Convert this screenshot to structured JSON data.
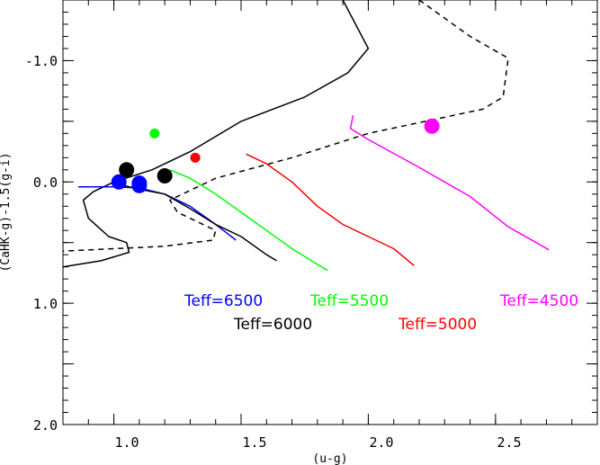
{
  "chart_data": {
    "type": "line",
    "xlabel": "(u-g)",
    "ylabel": "(CaHK-g)-1.5(g-i)",
    "xlim": [
      0.8,
      2.9
    ],
    "ylim": [
      2.0,
      -1.5
    ],
    "y_inverted": true,
    "x_ticks": [
      {
        "value": 1.0,
        "label": "1.0"
      },
      {
        "value": 1.5,
        "label": "1.5"
      },
      {
        "value": 2.0,
        "label": "2.0"
      },
      {
        "value": 2.5,
        "label": "2.5"
      }
    ],
    "y_ticks": [
      {
        "value": -1.0,
        "label": "-1.0"
      },
      {
        "value": 0.0,
        "label": "0.0"
      },
      {
        "value": 1.0,
        "label": "1.0"
      },
      {
        "value": 2.0,
        "label": "2.0"
      }
    ],
    "series": [
      {
        "name": "solid-boundary",
        "color": "#000000",
        "dash": "",
        "points": [
          [
            1.9,
            -1.5
          ],
          [
            1.95,
            -1.3
          ],
          [
            2.0,
            -1.1
          ],
          [
            1.92,
            -0.9
          ],
          [
            1.75,
            -0.7
          ],
          [
            1.5,
            -0.5
          ],
          [
            1.3,
            -0.25
          ],
          [
            1.15,
            -0.1
          ],
          [
            1.0,
            0.0
          ],
          [
            0.92,
            0.08
          ],
          [
            0.88,
            0.15
          ],
          [
            0.9,
            0.3
          ],
          [
            0.98,
            0.45
          ],
          [
            1.05,
            0.5
          ],
          [
            1.06,
            0.58
          ],
          [
            0.95,
            0.65
          ],
          [
            0.8,
            0.7
          ]
        ]
      },
      {
        "name": "dashed-boundary",
        "color": "#000000",
        "dash": "6,5",
        "points": [
          [
            2.2,
            -1.5
          ],
          [
            2.3,
            -1.35
          ],
          [
            2.4,
            -1.2
          ],
          [
            2.55,
            -1.02
          ],
          [
            2.53,
            -0.7
          ],
          [
            2.45,
            -0.6
          ],
          [
            2.0,
            -0.4
          ],
          [
            1.7,
            -0.2
          ],
          [
            1.4,
            -0.03
          ],
          [
            1.22,
            0.15
          ],
          [
            1.25,
            0.25
          ],
          [
            1.35,
            0.35
          ],
          [
            1.4,
            0.4
          ],
          [
            1.39,
            0.48
          ],
          [
            1.2,
            0.53
          ],
          [
            1.0,
            0.55
          ],
          [
            0.8,
            0.57
          ]
        ]
      },
      {
        "name": "Teff=6500",
        "color": "#0000ff",
        "dash": "",
        "points": [
          [
            0.86,
            0.04
          ],
          [
            1.0,
            0.04
          ],
          [
            1.1,
            0.05
          ],
          [
            1.2,
            0.1
          ],
          [
            1.3,
            0.2
          ],
          [
            1.4,
            0.35
          ],
          [
            1.48,
            0.48
          ]
        ]
      },
      {
        "name": "Teff=6000",
        "color": "#000000",
        "dash": "",
        "points": [
          [
            1.02,
            0.02
          ],
          [
            1.1,
            0.06
          ],
          [
            1.2,
            0.1
          ],
          [
            1.3,
            0.22
          ],
          [
            1.4,
            0.35
          ],
          [
            1.5,
            0.45
          ],
          [
            1.6,
            0.6
          ],
          [
            1.64,
            0.65
          ]
        ]
      },
      {
        "name": "Teff=5500",
        "color": "#00ff00",
        "dash": "",
        "points": [
          [
            1.22,
            -0.1
          ],
          [
            1.3,
            -0.03
          ],
          [
            1.4,
            0.1
          ],
          [
            1.5,
            0.25
          ],
          [
            1.6,
            0.4
          ],
          [
            1.7,
            0.55
          ],
          [
            1.8,
            0.68
          ],
          [
            1.84,
            0.73
          ]
        ]
      },
      {
        "name": "Teff=5000",
        "color": "#ff0000",
        "dash": "",
        "points": [
          [
            1.52,
            -0.23
          ],
          [
            1.6,
            -0.15
          ],
          [
            1.7,
            0.0
          ],
          [
            1.8,
            0.2
          ],
          [
            1.9,
            0.35
          ],
          [
            2.0,
            0.45
          ],
          [
            2.1,
            0.55
          ],
          [
            2.18,
            0.69
          ]
        ]
      },
      {
        "name": "Teff=4500",
        "color": "#ff00ff",
        "dash": "",
        "points": [
          [
            1.94,
            -0.55
          ],
          [
            1.93,
            -0.44
          ],
          [
            2.0,
            -0.35
          ],
          [
            2.2,
            -0.12
          ],
          [
            2.4,
            0.12
          ],
          [
            2.55,
            0.37
          ],
          [
            2.71,
            0.56
          ]
        ]
      }
    ],
    "points": [
      {
        "x": 1.02,
        "y": 0.0,
        "color": "#0000ff",
        "size": "large"
      },
      {
        "x": 1.1,
        "y": 0.01,
        "color": "#0000ff",
        "size": "large"
      },
      {
        "x": 1.1,
        "y": 0.03,
        "color": "#0000ff",
        "size": "large"
      },
      {
        "x": 1.05,
        "y": -0.1,
        "color": "#000000",
        "size": "large"
      },
      {
        "x": 1.2,
        "y": -0.05,
        "color": "#000000",
        "size": "large"
      },
      {
        "x": 1.16,
        "y": -0.4,
        "color": "#00ff00",
        "size": "small"
      },
      {
        "x": 1.32,
        "y": -0.2,
        "color": "#ff0000",
        "size": "small"
      },
      {
        "x": 2.25,
        "y": -0.46,
        "color": "#ff00ff",
        "size": "large"
      }
    ],
    "annotations": [
      {
        "text": "Teff=6500",
        "color": "#0000ff"
      },
      {
        "text": "Teff=6000",
        "color": "#000000"
      },
      {
        "text": "Teff=5500",
        "color": "#00ff00"
      },
      {
        "text": "Teff=5000",
        "color": "#ff0000"
      },
      {
        "text": "Teff=4500",
        "color": "#ff00ff"
      }
    ]
  }
}
